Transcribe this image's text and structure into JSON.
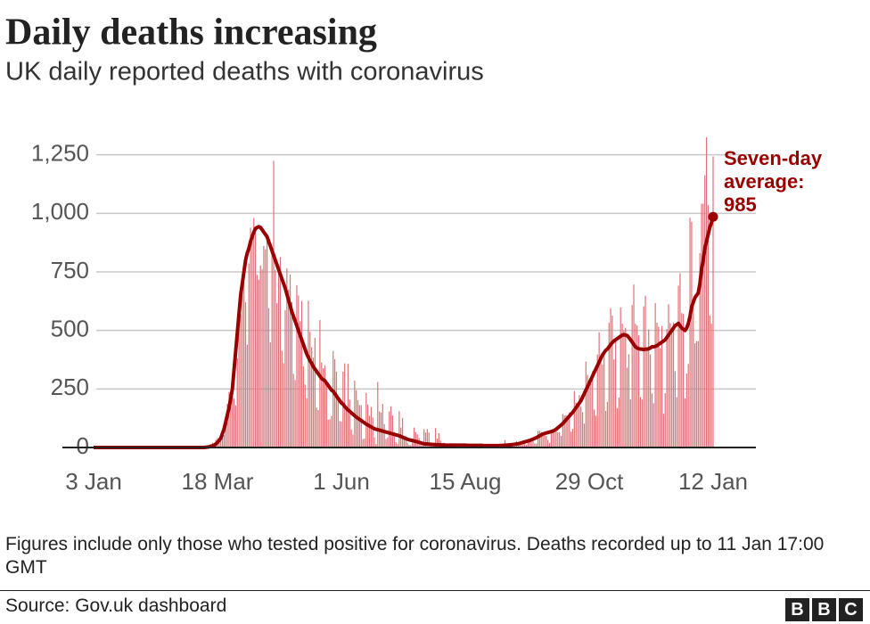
{
  "chart_data": {
    "type": "bar",
    "title": "Daily deaths increasing",
    "subtitle": "UK daily reported deaths with coronavirus",
    "annotation_lines": [
      "Seven-day",
      "average:"
    ],
    "notes": "Figures include only those who tested positive for coronavirus. Deaths recorded up to 11 Jan 17:00 GMT",
    "source": "Source: Gov.uk dashboard",
    "logo": [
      "B",
      "B",
      "C"
    ],
    "ylim": [
      0,
      1340
    ],
    "yticks": [
      0,
      250,
      500,
      750,
      {
        "value": 1000,
        "label": "1,000"
      },
      {
        "value": 1250,
        "label": "1,250"
      }
    ],
    "grid": true,
    "xticks": [
      "3 Jan",
      "18 Mar",
      "1 Jun",
      "15 Aug",
      "29 Oct",
      "12 Jan"
    ],
    "categories": [
      "3 Jan",
      "4 Jan",
      "5 Jan",
      "6 Jan",
      "7 Jan",
      "8 Jan",
      "9 Jan",
      "10 Jan",
      "11 Jan",
      "12 Jan",
      "13 Jan",
      "14 Jan",
      "15 Jan",
      "16 Jan",
      "17 Jan",
      "18 Jan",
      "19 Jan",
      "20 Jan",
      "21 Jan",
      "22 Jan",
      "23 Jan",
      "24 Jan",
      "25 Jan",
      "26 Jan",
      "27 Jan",
      "28 Jan",
      "29 Jan",
      "30 Jan",
      "31 Jan",
      "1 Feb",
      "2 Feb",
      "3 Feb",
      "4 Feb",
      "5 Feb",
      "6 Feb",
      "7 Feb",
      "8 Feb",
      "9 Feb",
      "10 Feb",
      "11 Feb",
      "12 Feb",
      "13 Feb",
      "14 Feb",
      "15 Feb",
      "16 Feb",
      "17 Feb",
      "18 Feb",
      "19 Feb",
      "20 Feb",
      "21 Feb",
      "22 Feb",
      "23 Feb",
      "24 Feb",
      "25 Feb",
      "26 Feb",
      "27 Feb",
      "28 Feb",
      "29 Feb",
      "1 Mar",
      "2 Mar",
      "3 Mar",
      "4 Mar",
      "5 Mar",
      "6 Mar",
      "7 Mar",
      "8 Mar",
      "9 Mar",
      "10 Mar",
      "11 Mar",
      "12 Mar",
      "13 Mar",
      "14 Mar",
      "15 Mar",
      "16 Mar",
      "17 Mar",
      "18 Mar",
      "19 Mar",
      "20 Mar",
      "21 Mar",
      "22 Mar",
      "23 Mar",
      "24 Mar",
      "25 Mar",
      "26 Mar",
      "27 Mar",
      "28 Mar",
      "29 Mar",
      "30 Mar",
      "31 Mar",
      "1 Apr",
      "2 Apr",
      "3 Apr",
      "4 Apr",
      "5 Apr",
      "6 Apr",
      "7 Apr",
      "8 Apr",
      "9 Apr",
      "10 Apr",
      "11 Apr",
      "12 Apr",
      "13 Apr",
      "14 Apr",
      "15 Apr",
      "16 Apr",
      "17 Apr",
      "18 Apr",
      "19 Apr",
      "20 Apr",
      "21 Apr",
      "22 Apr",
      "23 Apr",
      "24 Apr",
      "25 Apr",
      "26 Apr",
      "27 Apr",
      "28 Apr",
      "29 Apr",
      "30 Apr",
      "1 May",
      "2 May",
      "3 May",
      "4 May",
      "5 May",
      "6 May",
      "7 May",
      "8 May",
      "9 May",
      "10 May",
      "11 May",
      "12 May",
      "13 May",
      "14 May",
      "15 May",
      "16 May",
      "17 May",
      "18 May",
      "19 May",
      "20 May",
      "21 May",
      "22 May",
      "23 May",
      "24 May",
      "25 May",
      "26 May",
      "27 May",
      "28 May",
      "29 May",
      "30 May",
      "31 May",
      "1 Jun",
      "2 Jun",
      "3 Jun",
      "4 Jun",
      "5 Jun",
      "6 Jun",
      "7 Jun",
      "8 Jun",
      "9 Jun",
      "10 Jun",
      "11 Jun",
      "12 Jun",
      "13 Jun",
      "14 Jun",
      "15 Jun",
      "16 Jun",
      "17 Jun",
      "18 Jun",
      "19 Jun",
      "20 Jun",
      "21 Jun",
      "22 Jun",
      "23 Jun",
      "24 Jun",
      "25 Jun",
      "26 Jun",
      "27 Jun",
      "28 Jun",
      "29 Jun",
      "30 Jun",
      "1 Jul",
      "2 Jul",
      "3 Jul",
      "4 Jul",
      "5 Jul",
      "6 Jul",
      "7 Jul",
      "8 Jul",
      "9 Jul",
      "10 Jul",
      "11 Jul",
      "12 Jul",
      "13 Jul",
      "14 Jul",
      "15 Jul",
      "16 Jul",
      "17 Jul",
      "18 Jul",
      "19 Jul",
      "20 Jul",
      "21 Jul",
      "22 Jul",
      "23 Jul",
      "24 Jul",
      "25 Jul",
      "26 Jul",
      "27 Jul",
      "28 Jul",
      "29 Jul",
      "30 Jul",
      "31 Jul",
      "1 Aug",
      "2 Aug",
      "3 Aug",
      "4 Aug",
      "5 Aug",
      "6 Aug",
      "7 Aug",
      "8 Aug",
      "9 Aug",
      "10 Aug",
      "11 Aug",
      "12 Aug",
      "13 Aug",
      "14 Aug",
      "15 Aug",
      "16 Aug",
      "17 Aug",
      "18 Aug",
      "19 Aug",
      "20 Aug",
      "21 Aug",
      "22 Aug",
      "23 Aug",
      "24 Aug",
      "25 Aug",
      "26 Aug",
      "27 Aug",
      "28 Aug",
      "29 Aug",
      "30 Aug",
      "31 Aug",
      "1 Sep",
      "2 Sep",
      "3 Sep",
      "4 Sep",
      "5 Sep",
      "6 Sep",
      "7 Sep",
      "8 Sep",
      "9 Sep",
      "10 Sep",
      "11 Sep",
      "12 Sep",
      "13 Sep",
      "14 Sep",
      "15 Sep",
      "16 Sep",
      "17 Sep",
      "18 Sep",
      "19 Sep",
      "20 Sep",
      "21 Sep",
      "22 Sep",
      "23 Sep",
      "24 Sep",
      "25 Sep",
      "26 Sep",
      "27 Sep",
      "28 Sep",
      "29 Sep",
      "30 Sep",
      "1 Oct",
      "2 Oct",
      "3 Oct",
      "4 Oct",
      "5 Oct",
      "6 Oct",
      "7 Oct",
      "8 Oct",
      "9 Oct",
      "10 Oct",
      "11 Oct",
      "12 Oct",
      "13 Oct",
      "14 Oct",
      "15 Oct",
      "16 Oct",
      "17 Oct",
      "18 Oct",
      "19 Oct",
      "20 Oct",
      "21 Oct",
      "22 Oct",
      "23 Oct",
      "24 Oct",
      "25 Oct",
      "26 Oct",
      "27 Oct",
      "28 Oct",
      "29 Oct",
      "30 Oct",
      "31 Oct",
      "1 Nov",
      "2 Nov",
      "3 Nov",
      "4 Nov",
      "5 Nov",
      "6 Nov",
      "7 Nov",
      "8 Nov",
      "9 Nov",
      "10 Nov",
      "11 Nov",
      "12 Nov",
      "13 Nov",
      "14 Nov",
      "15 Nov",
      "16 Nov",
      "17 Nov",
      "18 Nov",
      "19 Nov",
      "20 Nov",
      "21 Nov",
      "22 Nov",
      "23 Nov",
      "24 Nov",
      "25 Nov",
      "26 Nov",
      "27 Nov",
      "28 Nov",
      "29 Nov",
      "30 Nov",
      "1 Dec",
      "2 Dec",
      "3 Dec",
      "4 Dec",
      "5 Dec",
      "6 Dec",
      "7 Dec",
      "8 Dec",
      "9 Dec",
      "10 Dec",
      "11 Dec",
      "12 Dec",
      "13 Dec",
      "14 Dec",
      "15 Dec",
      "16 Dec",
      "17 Dec",
      "18 Dec",
      "19 Dec",
      "20 Dec",
      "21 Dec",
      "22 Dec",
      "23 Dec",
      "24 Dec",
      "25 Dec",
      "26 Dec",
      "27 Dec",
      "28 Dec",
      "29 Dec",
      "30 Dec",
      "31 Dec",
      "1 Jan",
      "2 Jan",
      "3 Jan",
      "4 Jan",
      "5 Jan",
      "6 Jan",
      "7 Jan",
      "8 Jan",
      "9 Jan",
      "10 Jan",
      "11 Jan",
      "12 Jan"
    ],
    "series": [
      {
        "color": "#e07178",
        "values": [
          0,
          0,
          0,
          0,
          0,
          0,
          0,
          0,
          0,
          0,
          0,
          0,
          0,
          0,
          0,
          0,
          0,
          0,
          0,
          0,
          0,
          0,
          0,
          0,
          0,
          0,
          0,
          0,
          0,
          0,
          0,
          0,
          0,
          0,
          0,
          0,
          0,
          0,
          0,
          0,
          0,
          0,
          0,
          0,
          0,
          0,
          0,
          0,
          0,
          0,
          0,
          0,
          0,
          0,
          0,
          0,
          0,
          0,
          0,
          0,
          0,
          0,
          0,
          1,
          0,
          1,
          1,
          1,
          2,
          1,
          10,
          14,
          20,
          16,
          33,
          40,
          33,
          56,
          48,
          54,
          87,
          186,
          237,
          181,
          260,
          209,
          180,
          381,
          563,
          569,
          684,
          708,
          621,
          439,
          786,
          938,
          881,
          980,
          917,
          737,
          717,
          778,
          761,
          861,
          847,
          888,
          596,
          449,
          828,
          1224,
          759,
          616,
          768,
          813,
          413,
          360,
          586,
          765,
          674,
          739,
          621,
          315,
          288,
          693,
          649,
          539,
          626,
          346,
          269,
          210,
          627,
          494,
          428,
          384,
          468,
          170,
          160,
          545,
          363,
          338,
          351,
          282,
          118,
          121,
          134,
          412,
          377,
          324,
          215,
          113,
          111,
          324,
          359,
          176,
          357,
          204,
          77,
          55,
          286,
          245,
          202,
          181,
          181,
          36,
          38,
          233,
          184,
          135,
          173,
          128,
          43,
          15,
          280,
          154,
          149,
          186,
          100,
          36,
          43,
          154,
          176,
          137,
          67,
          22,
          16,
          155,
          85,
          126,
          48,
          48,
          21,
          11,
          10,
          38,
          85,
          66,
          56,
          40,
          11,
          10,
          79,
          64,
          79,
          64,
          13,
          11,
          19,
          83,
          38,
          61,
          29,
          12,
          20,
          12,
          14,
          10,
          18,
          18,
          11,
          8,
          8,
          10,
          12,
          10,
          12,
          8,
          5,
          3,
          12,
          15,
          6,
          15,
          10,
          2,
          3,
          16,
          13,
          12,
          9,
          6,
          3,
          2,
          3,
          10,
          14,
          12,
          12,
          2,
          3,
          32,
          8,
          14,
          6,
          9,
          5,
          9,
          27,
          20,
          21,
          27,
          27,
          18,
          11,
          37,
          37,
          40,
          34,
          17,
          17,
          71,
          71,
          66,
          59,
          66,
          49,
          33,
          19,
          76,
          70,
          77,
          87,
          65,
          65,
          50,
          143,
          137,
          138,
          136,
          150,
          67,
          80,
          241,
          191,
          189,
          224,
          174,
          151,
          102,
          367,
          310,
          280,
          274,
          326,
          162,
          136,
          397,
          492,
          378,
          355,
          413,
          156,
          194,
          532,
          595,
          563,
          376,
          462,
          168,
          213,
          598,
          529,
          501,
          511,
          341,
          398,
          206,
          608,
          696,
          528,
          521,
          479,
          215,
          205,
          603,
          648,
          414,
          504,
          397,
          231,
          189,
          616,
          533,
          516,
          424,
          519,
          144,
          232,
          506,
          612,
          532,
          489,
          534,
          326,
          215,
          691,
          744,
          574,
          570,
          210,
          316,
          357,
          981,
          964,
          613,
          445,
          454,
          454,
          830,
          1041,
          1041,
          1162,
          1325,
          1035,
          563,
          529,
          1243
        ]
      },
      {
        "type": "line",
        "color": "#990000",
        "values": [
          0,
          0,
          0,
          0,
          0,
          0,
          0,
          0,
          0,
          0,
          0,
          0,
          0,
          0,
          0,
          0,
          0,
          0,
          0,
          0,
          0,
          0,
          0,
          0,
          0,
          0,
          0,
          0,
          0,
          0,
          0,
          0,
          0,
          0,
          0,
          0,
          0,
          0,
          0,
          0,
          0,
          0,
          0,
          0,
          0,
          0,
          0,
          0,
          0,
          0,
          0,
          0,
          0,
          0,
          0,
          0,
          0,
          0,
          0,
          0,
          0,
          0,
          0,
          0,
          0,
          0,
          0,
          0,
          1,
          2,
          3,
          5,
          7,
          10,
          15,
          22,
          30,
          40,
          60,
          80,
          110,
          140,
          170,
          210,
          250,
          330,
          410,
          490,
          570,
          650,
          700,
          750,
          800,
          830,
          850,
          880,
          900,
          920,
          935,
          940,
          943,
          940,
          930,
          920,
          910,
          900,
          880,
          860,
          840,
          820,
          800,
          780,
          760,
          740,
          720,
          700,
          680,
          655,
          630,
          605,
          580,
          560,
          540,
          520,
          500,
          480,
          460,
          440,
          420,
          400,
          385,
          370,
          360,
          345,
          335,
          325,
          315,
          305,
          295,
          290,
          285,
          275,
          265,
          255,
          245,
          240,
          230,
          220,
          210,
          200,
          190,
          185,
          175,
          168,
          160,
          155,
          148,
          142,
          136,
          130,
          125,
          120,
          115,
          110,
          105,
          100,
          96,
          92,
          88,
          84,
          80,
          78,
          76,
          74,
          72,
          70,
          68,
          66,
          64,
          62,
          60,
          58,
          56,
          54,
          52,
          50,
          47,
          44,
          41,
          38,
          35,
          33,
          31,
          30,
          28,
          26,
          24,
          22,
          20,
          18,
          16,
          15,
          15,
          14,
          14,
          13,
          13,
          12,
          12,
          12,
          11,
          11,
          11,
          10,
          10,
          10,
          10,
          10,
          10,
          10,
          10,
          10,
          10,
          10,
          10,
          10,
          9,
          9,
          9,
          9,
          9,
          9,
          9,
          9,
          9,
          9,
          8,
          8,
          8,
          8,
          8,
          8,
          8,
          8,
          8,
          8,
          8,
          9,
          9,
          10,
          10,
          11,
          11,
          12,
          13,
          14,
          15,
          16,
          18,
          20,
          22,
          24,
          26,
          28,
          30,
          33,
          36,
          39,
          42,
          46,
          50,
          54,
          58,
          60,
          62,
          64,
          66,
          68,
          70,
          74,
          78,
          84,
          90,
          96,
          102,
          110,
          118,
          126,
          134,
          142,
          150,
          160,
          170,
          180,
          190,
          200,
          215,
          230,
          245,
          260,
          275,
          290,
          305,
          320,
          335,
          350,
          365,
          380,
          395,
          405,
          415,
          420,
          430,
          440,
          448,
          455,
          460,
          465,
          470,
          475,
          480,
          482,
          480,
          478,
          470,
          460,
          450,
          440,
          430,
          425,
          422,
          420,
          420,
          418,
          420,
          420,
          422,
          425,
          430,
          430,
          432,
          435,
          440,
          445,
          450,
          455,
          460,
          470,
          480,
          490,
          500,
          510,
          520,
          525,
          530,
          520,
          510,
          505,
          500,
          510,
          530,
          560,
          600,
          620,
          640,
          650,
          660,
          700,
          760,
          800,
          850,
          880,
          910,
          940,
          960,
          985
        ]
      }
    ]
  }
}
